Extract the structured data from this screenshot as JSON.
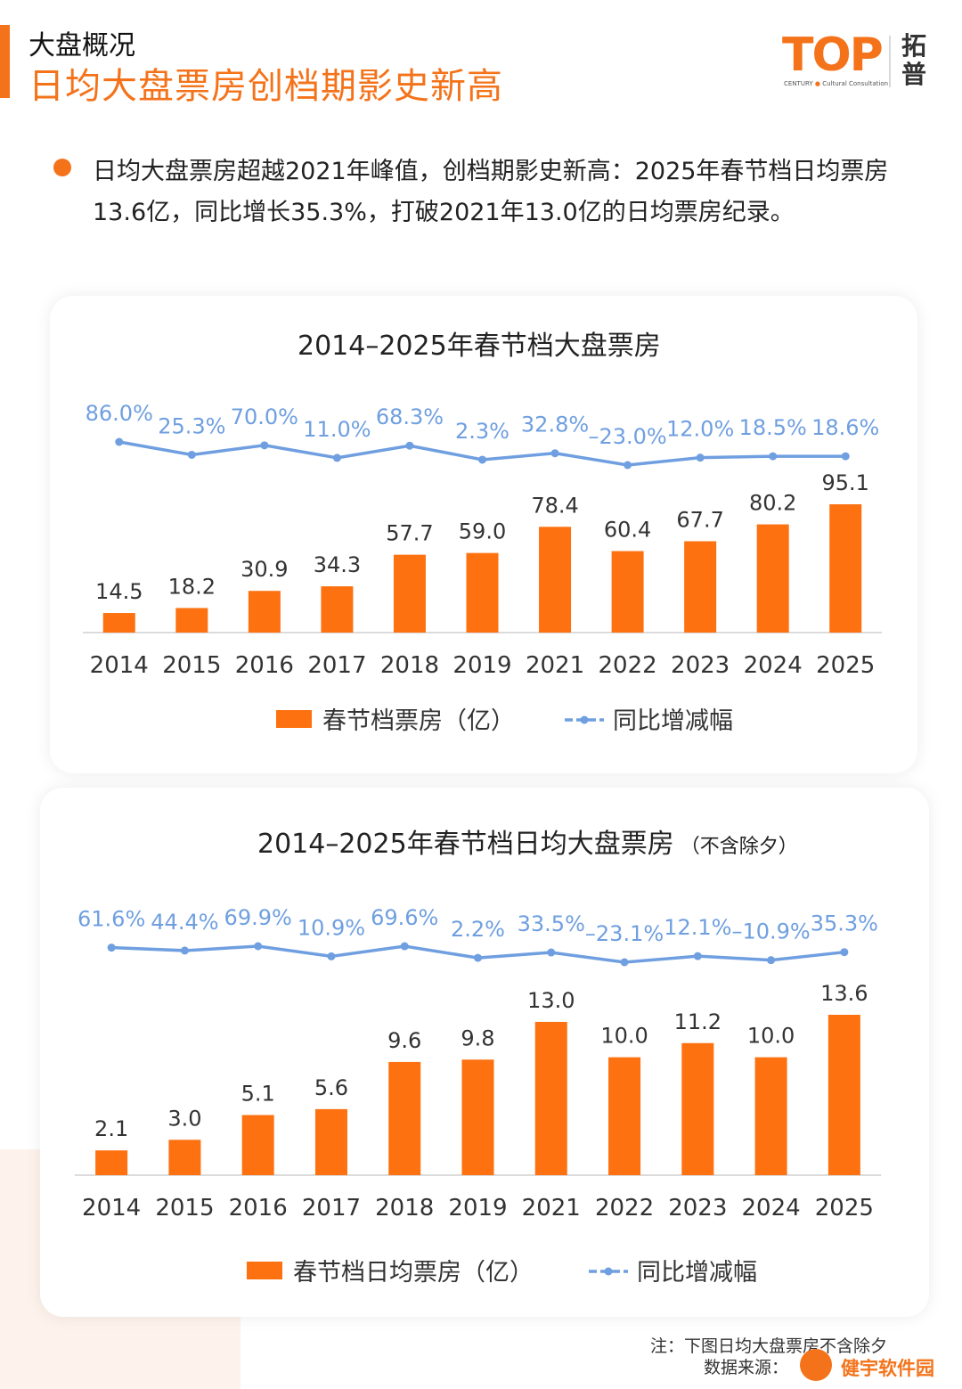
{
  "header": {
    "section_label": "大盘概况",
    "headline": "日均大盘票房创档期影史新高"
  },
  "logo": {
    "brand": "TOP",
    "sub_left": "CENTURY",
    "sub_right": "Cultural Consultation",
    "cn": "拓普"
  },
  "bullet": {
    "text": "日均大盘票房超越2021年峰值，创档期影史新高：2025年春节档日均票房13.6亿，同比增长35.3%，打破2021年13.0亿的日均票房纪录。"
  },
  "colors": {
    "bar": "#fd7110",
    "line": "#6f9fe0",
    "accent": "#f4731a"
  },
  "chart_data": [
    {
      "type": "bar",
      "title": "2014–2025年春节档大盘票房",
      "subtitle": "",
      "categories": [
        "2014",
        "2015",
        "2016",
        "2017",
        "2018",
        "2019",
        "2021",
        "2022",
        "2023",
        "2024",
        "2025"
      ],
      "series": [
        {
          "name": "春节档票房（亿）",
          "type": "bar",
          "values": [
            14.5,
            18.2,
            30.9,
            34.3,
            57.7,
            59.0,
            78.4,
            60.4,
            67.7,
            80.2,
            95.1
          ],
          "labels": [
            "14.5",
            "18.2",
            "30.9",
            "34.3",
            "57.7",
            "59.0",
            "78.4",
            "60.4",
            "67.7",
            "80.2",
            "95.1"
          ]
        },
        {
          "name": "同比增减幅",
          "type": "line",
          "values": [
            86.0,
            25.3,
            70.0,
            11.0,
            68.3,
            2.3,
            32.8,
            -23.0,
            12.0,
            18.5,
            18.6
          ],
          "labels": [
            "86.0%",
            "25.3%",
            "70.0%",
            "11.0%",
            "68.3%",
            "2.3%",
            "32.8%",
            "–23.0%",
            "12.0%",
            "18.5%",
            "18.6%"
          ]
        }
      ],
      "legend_position": "bottom",
      "grid": false
    },
    {
      "type": "bar",
      "title": "2014–2025年春节档日均大盘票房",
      "subtitle": "（不含除夕）",
      "categories": [
        "2014",
        "2015",
        "2016",
        "2017",
        "2018",
        "2019",
        "2021",
        "2022",
        "2023",
        "2024",
        "2025"
      ],
      "series": [
        {
          "name": "春节档日均票房（亿）",
          "type": "bar",
          "values": [
            2.1,
            3.0,
            5.1,
            5.6,
            9.6,
            9.8,
            13.0,
            10.0,
            11.2,
            10.0,
            13.6
          ],
          "labels": [
            "2.1",
            "3.0",
            "5.1",
            "5.6",
            "9.6",
            "9.8",
            "13.0",
            "10.0",
            "11.2",
            "10.0",
            "13.6"
          ]
        },
        {
          "name": "同比增减幅",
          "type": "line",
          "values": [
            61.6,
            44.4,
            69.9,
            10.9,
            69.6,
            2.2,
            33.5,
            -23.1,
            12.1,
            -10.9,
            35.3
          ],
          "labels": [
            "61.6%",
            "44.4%",
            "69.9%",
            "10.9%",
            "69.6%",
            "2.2%",
            "33.5%",
            "–23.1%",
            "12.1%",
            "–10.9%",
            "35.3%"
          ]
        }
      ],
      "legend_position": "bottom",
      "grid": false
    }
  ],
  "footer": {
    "note": "注：下图日均大盘票房不含除夕",
    "source": "数据来源：",
    "watermark": "健宇软件园"
  }
}
